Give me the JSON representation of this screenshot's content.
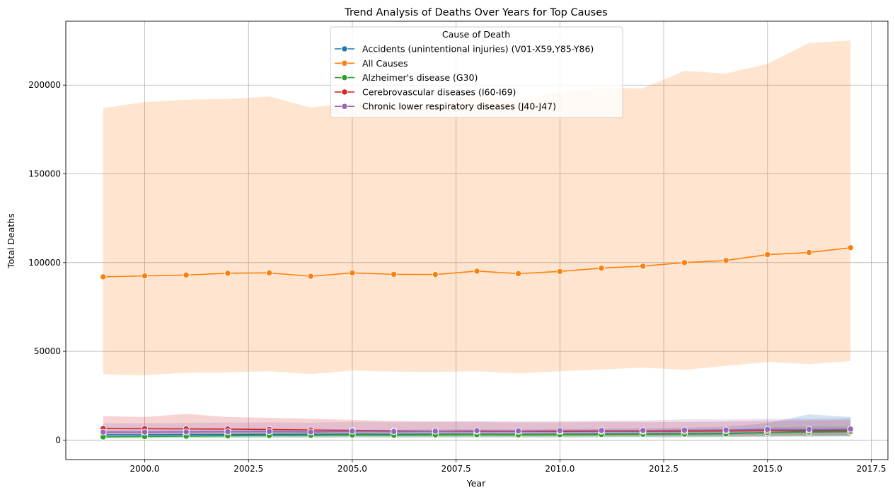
{
  "chart_data": {
    "type": "line",
    "title": "Trend Analysis of Deaths Over Years for Top Causes",
    "xlabel": "Year",
    "ylabel": "Total Deaths",
    "xlim": [
      1998.1,
      2017.9
    ],
    "ylim": [
      -11000,
      236000
    ],
    "xticks": [
      2000.0,
      2002.5,
      2005.0,
      2007.5,
      2010.0,
      2012.5,
      2015.0,
      2017.5
    ],
    "xtick_labels": [
      "2000.0",
      "2002.5",
      "2005.0",
      "2007.5",
      "2010.0",
      "2012.5",
      "2015.0",
      "2017.5"
    ],
    "yticks": [
      0,
      50000,
      100000,
      150000,
      200000
    ],
    "ytick_labels": [
      "0",
      "50000",
      "100000",
      "150000",
      "200000"
    ],
    "grid": true,
    "legend": {
      "title": "Cause of Death",
      "placement": "upper-center"
    },
    "x": [
      1999,
      2000,
      2001,
      2002,
      2003,
      2004,
      2005,
      2006,
      2007,
      2008,
      2009,
      2010,
      2011,
      2012,
      2013,
      2014,
      2015,
      2016,
      2017
    ],
    "series": [
      {
        "name": "Accidents (unintentional injuries) (V01-X59,Y85-Y86)",
        "color": "#1f77b4",
        "values": [
          3000,
          3000,
          3100,
          3100,
          3200,
          3200,
          3300,
          3200,
          3300,
          3300,
          3200,
          3300,
          3400,
          3500,
          3600,
          3800,
          4200,
          5000,
          5200
        ],
        "lower": [
          1500,
          1500,
          1500,
          1500,
          1600,
          1600,
          1600,
          1600,
          1600,
          1600,
          1600,
          1600,
          1700,
          1700,
          1700,
          1800,
          1900,
          2000,
          2000
        ],
        "upper": [
          5500,
          5500,
          5600,
          5600,
          5800,
          5800,
          5900,
          5800,
          6000,
          6000,
          6000,
          6200,
          6400,
          6600,
          7000,
          7500,
          9500,
          14500,
          13000
        ]
      },
      {
        "name": "All Causes",
        "color": "#ff7f0e",
        "values": [
          92000,
          92500,
          93000,
          94000,
          94200,
          92300,
          94200,
          93400,
          93300,
          95200,
          93800,
          95000,
          96900,
          98000,
          100000,
          101200,
          104500,
          105700,
          108400
        ],
        "lower": [
          37000,
          36500,
          38000,
          38200,
          38800,
          37200,
          39200,
          38600,
          38400,
          38800,
          37600,
          38800,
          39800,
          40800,
          39600,
          41800,
          44000,
          42800,
          44500
        ],
        "upper": [
          187000,
          190500,
          191800,
          192200,
          193600,
          187400,
          190000,
          189000,
          189600,
          193800,
          190800,
          196000,
          198500,
          198200,
          208000,
          206500,
          212000,
          223800,
          225200
        ]
      },
      {
        "name": "Alzheimer's disease (G30)",
        "color": "#2ca02c",
        "values": [
          1800,
          2000,
          2200,
          2400,
          2600,
          2700,
          2900,
          2800,
          3000,
          3100,
          3000,
          3100,
          3200,
          3300,
          3400,
          3500,
          4300,
          4500,
          4700
        ],
        "lower": [
          800,
          900,
          1000,
          1100,
          1200,
          1200,
          1300,
          1300,
          1400,
          1400,
          1400,
          1400,
          1500,
          1500,
          1500,
          1600,
          1900,
          2000,
          2100
        ],
        "upper": [
          3000,
          3300,
          3600,
          3900,
          4200,
          4400,
          4700,
          4600,
          4900,
          5100,
          5000,
          5200,
          5400,
          5500,
          5700,
          5900,
          7200,
          7600,
          8000
        ]
      },
      {
        "name": "Cerebrovascular diseases (I60-I69)",
        "color": "#d62728",
        "values": [
          6500,
          6400,
          6300,
          6200,
          6000,
          5700,
          5500,
          5200,
          5000,
          5000,
          4900,
          4900,
          5000,
          5000,
          5000,
          5100,
          5300,
          5500,
          5600
        ],
        "lower": [
          2800,
          2700,
          2700,
          2600,
          2600,
          2500,
          2400,
          2300,
          2200,
          2200,
          2200,
          2200,
          2200,
          2200,
          2200,
          2300,
          2400,
          2400,
          2500
        ],
        "upper": [
          13500,
          13000,
          14800,
          13000,
          12600,
          12000,
          11400,
          10800,
          10400,
          10200,
          10000,
          10000,
          10200,
          10200,
          10200,
          10400,
          10800,
          11200,
          11400
        ]
      },
      {
        "name": "Chronic lower respiratory diseases (J40-J47)",
        "color": "#9467bd",
        "values": [
          4500,
          4500,
          4600,
          4700,
          4800,
          4600,
          5000,
          4800,
          5000,
          5300,
          5100,
          5300,
          5400,
          5400,
          5600,
          5700,
          6000,
          6000,
          6200
        ],
        "lower": [
          2000,
          2000,
          2000,
          2100,
          2100,
          2000,
          2200,
          2100,
          2200,
          2300,
          2200,
          2300,
          2400,
          2400,
          2400,
          2500,
          2600,
          2600,
          2700
        ],
        "upper": [
          9500,
          9500,
          9700,
          9900,
          10000,
          9800,
          10300,
          10100,
          10300,
          10800,
          10500,
          10800,
          11000,
          11100,
          11600,
          11600,
          12000,
          12000,
          12600
        ]
      }
    ]
  }
}
